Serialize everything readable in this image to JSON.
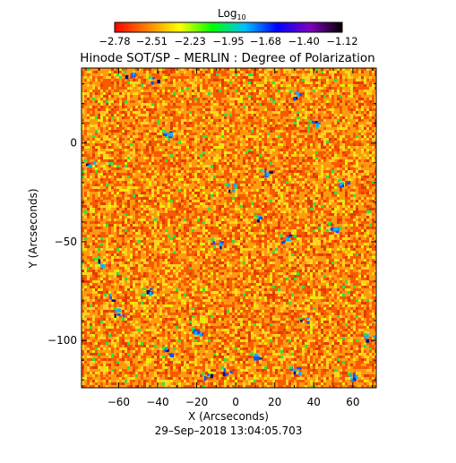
{
  "chart_data": {
    "type": "heatmap",
    "title": "Hinode SOT/SP – MERLIN : Degree of Polarization",
    "xlabel": "X (Arcseconds)",
    "ylabel": "Y (Arcseconds)",
    "xlim": [
      -79,
      72
    ],
    "ylim": [
      -124,
      38
    ],
    "x_ticks": [
      -60,
      -40,
      -20,
      0,
      20,
      40,
      60
    ],
    "x_tick_labels": [
      "−60",
      "−40",
      "−20",
      "0",
      "20",
      "40",
      "60"
    ],
    "y_ticks": [
      0,
      -50,
      -100
    ],
    "y_tick_labels": [
      "0",
      "−50",
      "−100"
    ],
    "colorbar": {
      "label_main": "Log",
      "label_sub": "10",
      "range": [
        -2.78,
        -1.12
      ],
      "ticks": [
        -2.78,
        -2.51,
        -2.23,
        -1.95,
        -1.68,
        -1.4,
        -1.12
      ],
      "tick_labels": [
        "−2.78",
        "−2.51",
        "−2.23",
        "−1.95",
        "−1.68",
        "−1.40",
        "−1.12"
      ],
      "colormap": [
        "#ff0000",
        "#ff8000",
        "#ffff00",
        "#00ff00",
        "#00c0ff",
        "#0000ff",
        "#8000c0",
        "#000000"
      ]
    },
    "background_colors": [
      "#ff9a10",
      "#f85a00",
      "#e03c00",
      "#ffd020",
      "#e8f000"
    ],
    "speckle_colors": [
      "#30e040",
      "#10b0ff",
      "#1050ff",
      "#081078"
    ],
    "timestamp": "29–Sep–2018 13:04:05.703"
  }
}
